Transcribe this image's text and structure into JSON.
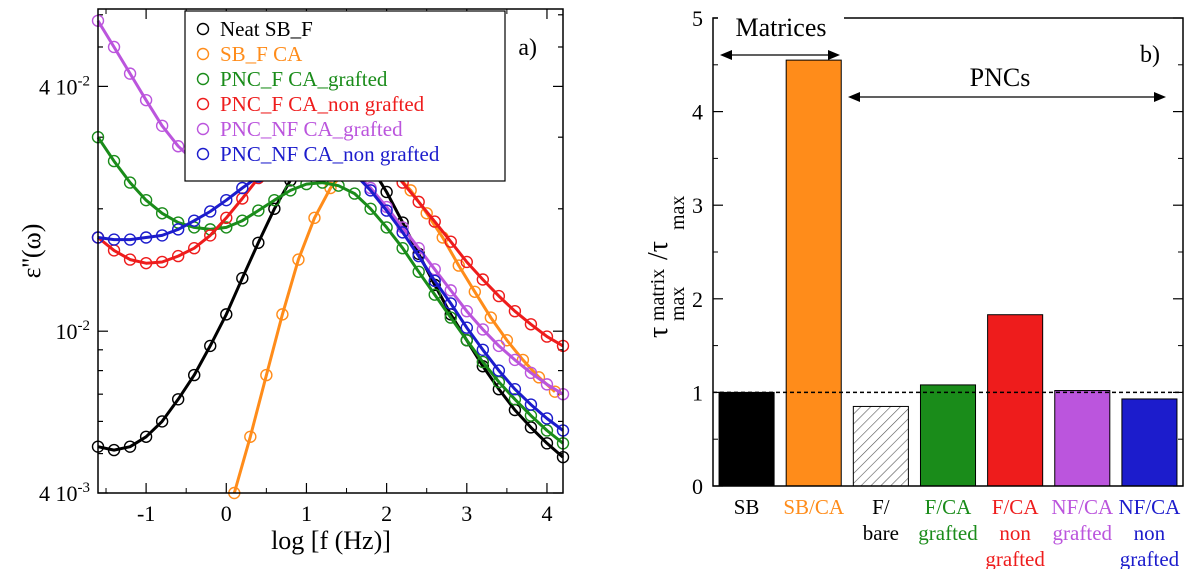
{
  "chart_data": [
    {
      "type": "scatter",
      "panel_label": "a)",
      "xlabel": "log [f (Hz)]",
      "ylabel": "ε''(ω)",
      "xlim": [
        -1.6,
        4.2
      ],
      "ylim": [
        0.004,
        0.062
      ],
      "yscale": "log",
      "xticks": [
        -1,
        0,
        1,
        2,
        3,
        4
      ],
      "xtick_labels": [
        "-1",
        "0",
        "1",
        "2",
        "3",
        "4"
      ],
      "yticks": [
        0.004,
        0.01,
        0.04
      ],
      "ytick_labels": [
        "4 10-3",
        "10-2",
        "4 10-2"
      ],
      "legend_position": "top-right",
      "series": [
        {
          "name": "Neat SB_F",
          "color": "#000000",
          "x": [
            -1.6,
            -1.4,
            -1.2,
            -1.0,
            -0.8,
            -0.6,
            -0.4,
            -0.2,
            0,
            0.2,
            0.4,
            0.6,
            0.8,
            1.0,
            1.2,
            1.4,
            1.6,
            1.8,
            2.0,
            2.2,
            2.4,
            2.6,
            2.8,
            3.0,
            3.2,
            3.4,
            3.6,
            3.8,
            4.0,
            4.2
          ],
          "y": [
            0.0052,
            0.0051,
            0.0052,
            0.0055,
            0.006,
            0.0068,
            0.0078,
            0.0092,
            0.011,
            0.0135,
            0.0165,
            0.02,
            0.0235,
            0.0265,
            0.0285,
            0.0292,
            0.0282,
            0.0255,
            0.022,
            0.0185,
            0.0155,
            0.013,
            0.011,
            0.0095,
            0.0082,
            0.0072,
            0.0064,
            0.0058,
            0.0053,
            0.0049
          ]
        },
        {
          "name": "SB_F CA",
          "color": "#ff8c1a",
          "x": [
            0.1,
            0.3,
            0.5,
            0.7,
            0.9,
            1.1,
            1.3,
            1.5,
            1.7,
            1.9,
            2.1,
            2.3,
            2.5,
            2.7,
            2.9,
            3.1,
            3.3,
            3.5,
            3.7,
            3.9,
            4.1
          ],
          "y": [
            0.004,
            0.0055,
            0.0078,
            0.011,
            0.015,
            0.019,
            0.0225,
            0.025,
            0.0262,
            0.0258,
            0.0245,
            0.0222,
            0.0195,
            0.017,
            0.0145,
            0.0125,
            0.0108,
            0.0095,
            0.0085,
            0.0077,
            0.0071
          ]
        },
        {
          "name": "PNC_F CA_grafted",
          "color": "#1a8c1a",
          "x": [
            -1.6,
            -1.4,
            -1.2,
            -1.0,
            -0.8,
            -0.6,
            -0.4,
            -0.2,
            0,
            0.2,
            0.4,
            0.6,
            0.8,
            1.0,
            1.2,
            1.4,
            1.6,
            1.8,
            2.0,
            2.2,
            2.4,
            2.6,
            2.8,
            3.0,
            3.2,
            3.4,
            3.6,
            3.8,
            4.0,
            4.2
          ],
          "y": [
            0.03,
            0.0262,
            0.0232,
            0.021,
            0.0195,
            0.0185,
            0.018,
            0.0178,
            0.018,
            0.0187,
            0.0198,
            0.021,
            0.0222,
            0.023,
            0.0232,
            0.0228,
            0.0218,
            0.02,
            0.018,
            0.016,
            0.014,
            0.0123,
            0.0108,
            0.0095,
            0.0084,
            0.0075,
            0.0068,
            0.0062,
            0.0057,
            0.0053
          ]
        },
        {
          "name": "PNC_F CA_non grafted",
          "color": "#ee1c1c",
          "x": [
            -1.6,
            -1.4,
            -1.2,
            -1.0,
            -0.8,
            -0.6,
            -0.4,
            -0.2,
            0,
            0.2,
            0.4,
            0.6,
            0.8,
            1.0,
            1.2,
            1.4,
            1.6,
            1.8,
            2.0,
            2.2,
            2.4,
            2.6,
            2.8,
            3.0,
            3.2,
            3.4,
            3.6,
            3.8,
            4.0,
            4.2
          ],
          "y": [
            0.017,
            0.0158,
            0.015,
            0.0147,
            0.0148,
            0.0153,
            0.016,
            0.0172,
            0.019,
            0.0212,
            0.0238,
            0.0262,
            0.0282,
            0.0296,
            0.0305,
            0.0307,
            0.03,
            0.0282,
            0.0258,
            0.0232,
            0.0208,
            0.0186,
            0.0166,
            0.0148,
            0.0134,
            0.0122,
            0.0112,
            0.0104,
            0.0097,
            0.0092
          ]
        },
        {
          "name": "PNC_NF CA_grafted",
          "color": "#bb55dd",
          "x": [
            -1.6,
            -1.4,
            -1.2,
            -1.0,
            -0.8,
            -0.6,
            -0.4,
            -0.2,
            0,
            0.2,
            0.4,
            0.6,
            0.8,
            1.0,
            1.2,
            1.4,
            1.6,
            1.8,
            2.0,
            2.2,
            2.4,
            2.6,
            2.8,
            3.0,
            3.2,
            3.4,
            3.6,
            3.8,
            4.0,
            4.2
          ],
          "y": [
            0.058,
            0.05,
            0.043,
            0.037,
            0.032,
            0.0285,
            0.0262,
            0.025,
            0.0247,
            0.025,
            0.0256,
            0.0263,
            0.0268,
            0.027,
            0.0268,
            0.026,
            0.0245,
            0.0225,
            0.0202,
            0.018,
            0.016,
            0.0142,
            0.0126,
            0.0112,
            0.0101,
            0.0092,
            0.0085,
            0.0079,
            0.0074,
            0.007
          ]
        },
        {
          "name": "PNC_NF CA_non grafted",
          "color": "#1c1ccc",
          "x": [
            -1.6,
            -1.4,
            -1.2,
            -1.0,
            -0.8,
            -0.6,
            -0.4,
            -0.2,
            0,
            0.2,
            0.4,
            0.6,
            0.8,
            1.0,
            1.2,
            1.4,
            1.6,
            1.8,
            2.0,
            2.2,
            2.4,
            2.6,
            2.8,
            3.0,
            3.2,
            3.4,
            3.6,
            3.8,
            4.0,
            4.2
          ],
          "y": [
            0.017,
            0.0168,
            0.0168,
            0.017,
            0.0172,
            0.0178,
            0.0187,
            0.0197,
            0.021,
            0.0225,
            0.024,
            0.0255,
            0.0265,
            0.027,
            0.0268,
            0.026,
            0.0244,
            0.0222,
            0.0198,
            0.0175,
            0.0153,
            0.0133,
            0.0117,
            0.0102,
            0.009,
            0.008,
            0.0072,
            0.0066,
            0.0061,
            0.0057
          ]
        }
      ]
    },
    {
      "type": "bar",
      "panel_label": "b)",
      "ylabel": "τ_max^matrix / τ_max",
      "ylim": [
        0,
        5
      ],
      "yticks": [
        0,
        1,
        2,
        3,
        4,
        5
      ],
      "reference_line": 1,
      "categories": [
        "SB",
        "SB/CA",
        "F/ bare",
        "F/CA grafted",
        "F/CA non grafted",
        "NF/CA grafted",
        "NF/CA non grafted"
      ],
      "category_label_lines": [
        [
          "SB"
        ],
        [
          "SB/CA"
        ],
        [
          "F/",
          "bare"
        ],
        [
          "F/CA",
          "grafted"
        ],
        [
          "F/CA",
          "non",
          "grafted"
        ],
        [
          "NF/CA",
          "grafted"
        ],
        [
          "NF/CA",
          "non",
          "grafted"
        ]
      ],
      "values": [
        1.0,
        4.55,
        0.85,
        1.08,
        1.83,
        1.02,
        0.93
      ],
      "colors": [
        "#000000",
        "#ff8c1a",
        "hatched",
        "#1a8c1a",
        "#ee1c1c",
        "#bb55dd",
        "#1c1ccc"
      ],
      "label_colors": [
        "#000000",
        "#ff8c1a",
        "#000000",
        "#1a8c1a",
        "#ee1c1c",
        "#bb55dd",
        "#1c1ccc"
      ],
      "annotations": {
        "matrices": "Matrices",
        "pncs": "PNCs"
      }
    }
  ]
}
